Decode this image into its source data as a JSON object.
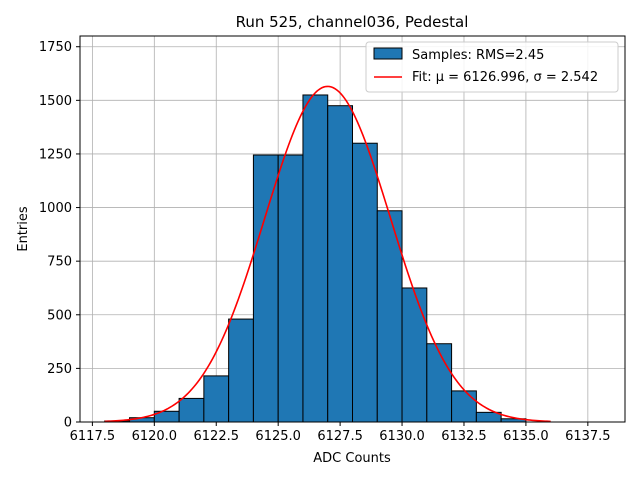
{
  "chart_data": {
    "type": "bar",
    "title": "Run 525, channel036, Pedestal",
    "xlabel": "ADC Counts",
    "ylabel": "Entries",
    "xlim": [
      6117.0,
      6139.0
    ],
    "ylim": [
      0,
      1800
    ],
    "xticks": [
      6117.5,
      6120.0,
      6122.5,
      6125.0,
      6127.5,
      6130.0,
      6132.5,
      6135.0,
      6137.5
    ],
    "xtick_labels": [
      "6117.5",
      "6120.0",
      "6122.5",
      "6125.0",
      "6127.5",
      "6130.0",
      "6132.5",
      "6135.0",
      "6137.5"
    ],
    "yticks": [
      0,
      250,
      500,
      750,
      1000,
      1250,
      1500,
      1750
    ],
    "ytick_labels": [
      "0",
      "250",
      "500",
      "750",
      "1000",
      "1250",
      "1500",
      "1750"
    ],
    "grid": true,
    "legend_position": "top-right",
    "series": [
      {
        "name": "Samples: RMS=2.45",
        "kind": "histogram",
        "color": "#1f77b4",
        "edgecolor": "#000000",
        "bin_edges": [
          6118,
          6119,
          6120,
          6121,
          6122,
          6123,
          6124,
          6125,
          6126,
          6127,
          6128,
          6129,
          6130,
          6131,
          6132,
          6133,
          6134,
          6135
        ],
        "values": [
          5,
          20,
          50,
          110,
          215,
          480,
          1245,
          1245,
          1525,
          1475,
          1300,
          985,
          625,
          365,
          145,
          45,
          15
        ]
      },
      {
        "name": "Fit: μ = 6126.996, σ = 2.542",
        "kind": "gaussian",
        "color": "#ff0000",
        "mu": 6126.996,
        "sigma": 2.542,
        "amplitude": 1565,
        "x_range": [
          6118,
          6136
        ]
      }
    ]
  },
  "legend": {
    "hist_label": "Samples: RMS=2.45",
    "fit_label": "Fit: μ = 6126.996, σ = 2.542"
  }
}
